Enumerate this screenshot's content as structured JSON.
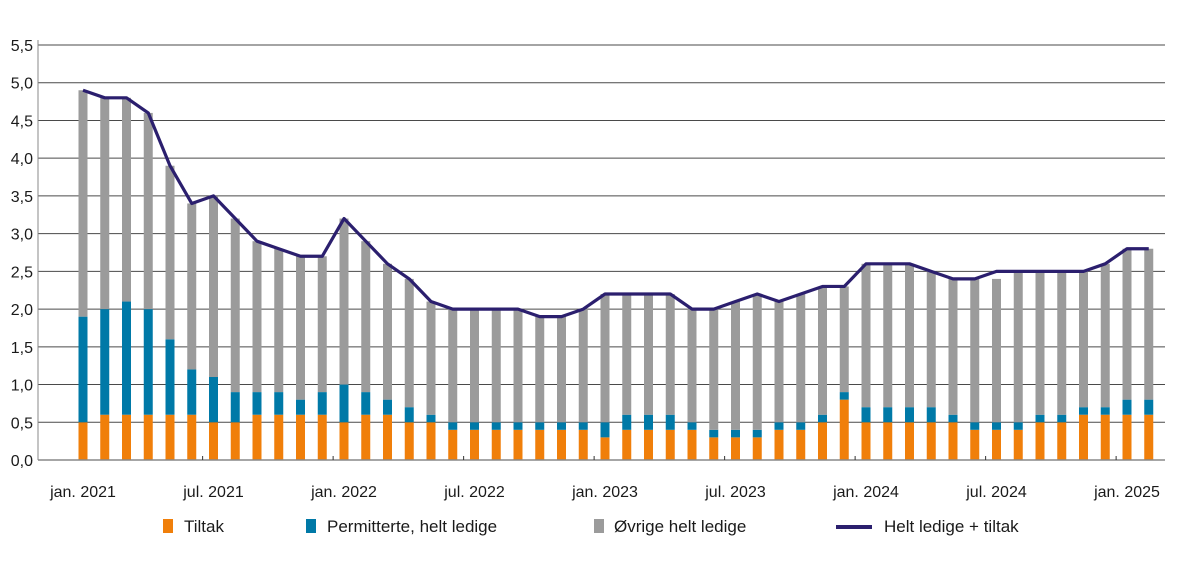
{
  "chart_data": {
    "type": "bar",
    "stacked": true,
    "title": "",
    "xlabel": "",
    "ylabel": "",
    "ylim": [
      0,
      5.5
    ],
    "yticks": [
      "0,0",
      "0,5",
      "1,0",
      "1,5",
      "2,0",
      "2,5",
      "3,0",
      "3,5",
      "4,0",
      "4,5",
      "5,0",
      "5,5"
    ],
    "grid": true,
    "legend_position": "bottom",
    "categories": [
      "jan. 2021",
      "feb. 2021",
      "mar. 2021",
      "apr. 2021",
      "mai 2021",
      "jun. 2021",
      "jul. 2021",
      "aug. 2021",
      "sep. 2021",
      "okt. 2021",
      "nov. 2021",
      "des. 2021",
      "jan. 2022",
      "feb. 2022",
      "mar. 2022",
      "apr. 2022",
      "mai 2022",
      "jun. 2022",
      "jul. 2022",
      "aug. 2022",
      "sep. 2022",
      "okt. 2022",
      "nov. 2022",
      "des. 2022",
      "jan. 2023",
      "feb. 2023",
      "mar. 2023",
      "apr. 2023",
      "mai 2023",
      "jun. 2023",
      "jul. 2023",
      "aug. 2023",
      "sep. 2023",
      "okt. 2023",
      "nov. 2023",
      "des. 2023",
      "jan. 2024",
      "feb. 2024",
      "mar. 2024",
      "apr. 2024",
      "mai 2024",
      "jun. 2024",
      "jul. 2024",
      "aug. 2024",
      "sep. 2024",
      "okt. 2024",
      "nov. 2024",
      "des. 2024",
      "jan. 2025",
      "feb. 2025"
    ],
    "xtick_labels": [
      "jan. 2021",
      "jul. 2021",
      "jan. 2022",
      "jul. 2022",
      "jan. 2023",
      "jul. 2023",
      "jan. 2024",
      "jul. 2024",
      "jan. 2025"
    ],
    "series": [
      {
        "name": "Tiltak",
        "kind": "bar",
        "color": "#f07f0a",
        "values": [
          0.5,
          0.6,
          0.6,
          0.6,
          0.6,
          0.6,
          0.5,
          0.5,
          0.6,
          0.6,
          0.6,
          0.6,
          0.5,
          0.6,
          0.6,
          0.5,
          0.5,
          0.4,
          0.4,
          0.4,
          0.4,
          0.4,
          0.4,
          0.4,
          0.3,
          0.4,
          0.4,
          0.4,
          0.4,
          0.3,
          0.3,
          0.3,
          0.4,
          0.4,
          0.5,
          0.8,
          0.5,
          0.5,
          0.5,
          0.5,
          0.5,
          0.4,
          0.4,
          0.4,
          0.5,
          0.5,
          0.6,
          0.6,
          0.6,
          0.6
        ]
      },
      {
        "name": "Permitterte, helt ledige",
        "kind": "bar",
        "color": "#0079a7",
        "values": [
          1.4,
          1.4,
          1.5,
          1.4,
          1.0,
          0.6,
          0.6,
          0.4,
          0.3,
          0.3,
          0.2,
          0.3,
          0.5,
          0.3,
          0.2,
          0.2,
          0.1,
          0.1,
          0.1,
          0.1,
          0.1,
          0.1,
          0.1,
          0.1,
          0.2,
          0.2,
          0.2,
          0.2,
          0.1,
          0.1,
          0.1,
          0.1,
          0.1,
          0.1,
          0.1,
          0.1,
          0.2,
          0.2,
          0.2,
          0.2,
          0.1,
          0.1,
          0.1,
          0.1,
          0.1,
          0.1,
          0.1,
          0.1,
          0.2,
          0.2
        ]
      },
      {
        "name": "Øvrige helt ledige",
        "kind": "bar",
        "color": "#9b9b9b",
        "values": [
          3.0,
          2.8,
          2.7,
          2.6,
          2.3,
          2.2,
          2.4,
          2.3,
          2.0,
          1.9,
          1.9,
          1.8,
          2.2,
          2.0,
          1.8,
          1.7,
          1.5,
          1.5,
          1.5,
          1.5,
          1.5,
          1.4,
          1.4,
          1.5,
          1.7,
          1.6,
          1.6,
          1.6,
          1.5,
          1.6,
          1.7,
          1.8,
          1.6,
          1.7,
          1.7,
          1.4,
          1.9,
          1.9,
          1.9,
          1.8,
          1.8,
          1.9,
          1.9,
          2.0,
          1.9,
          1.9,
          1.8,
          1.9,
          2.0,
          2.0
        ]
      },
      {
        "name": "Helt ledige + tiltak",
        "kind": "line",
        "color": "#2b1f6e",
        "values": [
          4.9,
          4.8,
          4.8,
          4.6,
          3.9,
          3.4,
          3.5,
          3.2,
          2.9,
          2.8,
          2.7,
          2.7,
          3.2,
          2.9,
          2.6,
          2.4,
          2.1,
          2.0,
          2.0,
          2.0,
          2.0,
          1.9,
          1.9,
          2.0,
          2.2,
          2.2,
          2.2,
          2.2,
          2.0,
          2.0,
          2.1,
          2.2,
          2.1,
          2.2,
          2.3,
          2.3,
          2.6,
          2.6,
          2.6,
          2.5,
          2.4,
          2.4,
          2.5,
          2.5,
          2.5,
          2.5,
          2.5,
          2.6,
          2.8,
          2.8
        ]
      }
    ]
  }
}
